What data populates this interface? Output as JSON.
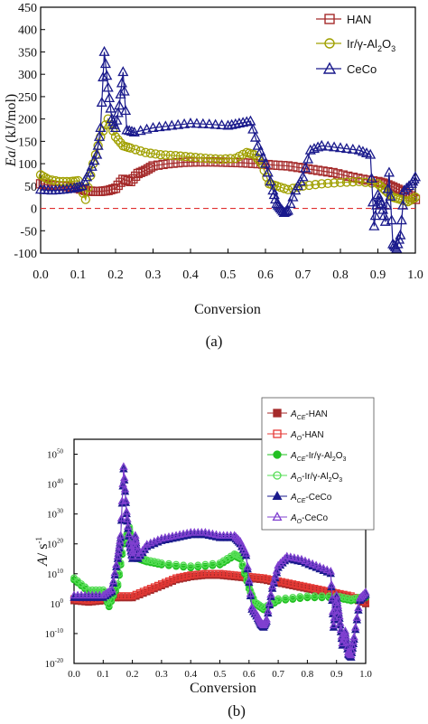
{
  "colors": {
    "han": "#a52a2a",
    "han_fill": "#e53935",
    "ir": "#a0a000",
    "ir_b": "#22c022",
    "ir_b_open": "#55dd55",
    "ceco": "#1a1a8c",
    "ceco_b": "#8040d0",
    "zero_line": "#e03030"
  },
  "chart_data": [
    {
      "type": "line",
      "caption": "(a)",
      "xlabel": "Conversion",
      "ylabel_italic": "Ea",
      "ylabel_rest": "/ (kJ/mol)",
      "xlim": [
        0.0,
        1.0
      ],
      "ylim": [
        -100,
        450
      ],
      "x_ticks": [
        "0.0",
        "0.1",
        "0.2",
        "0.3",
        "0.4",
        "0.5",
        "0.6",
        "0.7",
        "0.8",
        "0.9",
        "1.0"
      ],
      "y_ticks": [
        "450",
        "400",
        "350",
        "300",
        "250",
        "200",
        "150",
        "100",
        "50",
        "0",
        "-50",
        "-100"
      ],
      "legend_placement": "top-right",
      "reference_line": {
        "y": 0,
        "style": "dashed"
      },
      "series": [
        {
          "name": "HAN",
          "marker": "square-open",
          "x": [
            0.0,
            0.02,
            0.05,
            0.08,
            0.1,
            0.12,
            0.14,
            0.16,
            0.18,
            0.2,
            0.22,
            0.24,
            0.26,
            0.28,
            0.3,
            0.34,
            0.38,
            0.42,
            0.46,
            0.5,
            0.54,
            0.58,
            0.62,
            0.66,
            0.7,
            0.74,
            0.78,
            0.82,
            0.86,
            0.9,
            0.92,
            0.94,
            0.96,
            0.98,
            1.0
          ],
          "y": [
            55,
            52,
            50,
            48,
            45,
            40,
            38,
            38,
            40,
            45,
            65,
            60,
            78,
            85,
            95,
            100,
            103,
            104,
            104,
            103,
            102,
            100,
            97,
            95,
            90,
            85,
            80,
            72,
            65,
            60,
            55,
            48,
            40,
            32,
            20
          ]
        },
        {
          "name_text": "Ir/γ-Al",
          "name_sub1": "2",
          "name_mid": "O",
          "name_sub2": "3",
          "marker": "circle-open",
          "x": [
            0.0,
            0.02,
            0.05,
            0.08,
            0.1,
            0.12,
            0.14,
            0.16,
            0.18,
            0.2,
            0.22,
            0.24,
            0.28,
            0.32,
            0.36,
            0.4,
            0.44,
            0.48,
            0.52,
            0.55,
            0.57,
            0.59,
            0.61,
            0.63,
            0.66,
            0.7,
            0.75,
            0.8,
            0.85,
            0.9,
            0.92,
            0.94,
            0.96,
            0.98,
            1.0
          ],
          "y": [
            75,
            65,
            60,
            60,
            62,
            20,
            100,
            160,
            200,
            160,
            140,
            135,
            125,
            120,
            118,
            115,
            112,
            110,
            112,
            125,
            120,
            100,
            55,
            50,
            42,
            50,
            55,
            58,
            60,
            55,
            40,
            25,
            20,
            15,
            25
          ]
        },
        {
          "name": "CeCo",
          "marker": "triangle-open",
          "x": [
            0.0,
            0.03,
            0.06,
            0.09,
            0.11,
            0.13,
            0.15,
            0.16,
            0.17,
            0.18,
            0.19,
            0.2,
            0.21,
            0.22,
            0.23,
            0.25,
            0.3,
            0.35,
            0.4,
            0.45,
            0.5,
            0.53,
            0.56,
            0.58,
            0.6,
            0.62,
            0.63,
            0.64,
            0.65,
            0.66,
            0.68,
            0.7,
            0.72,
            0.75,
            0.8,
            0.85,
            0.88,
            0.89,
            0.9,
            0.91,
            0.92,
            0.93,
            0.94,
            0.95,
            0.96,
            0.97,
            0.99,
            1.0
          ],
          "y": [
            42,
            40,
            42,
            45,
            50,
            80,
            120,
            180,
            350,
            270,
            200,
            180,
            230,
            305,
            175,
            170,
            180,
            185,
            190,
            188,
            185,
            190,
            195,
            140,
            100,
            40,
            10,
            0,
            -10,
            -5,
            40,
            70,
            130,
            140,
            135,
            130,
            120,
            -40,
            30,
            10,
            -30,
            80,
            -80,
            -90,
            -60,
            40,
            55,
            70
          ]
        }
      ]
    },
    {
      "type": "line",
      "caption": "(b)",
      "xlabel": "Conversion",
      "ylabel_italic": "A",
      "ylabel_rest": "/ s",
      "ylabel_sup": "-1",
      "xlim": [
        0.0,
        1.0
      ],
      "ylim_log10": [
        -20,
        55
      ],
      "y_scale": "log",
      "x_ticks": [
        "0.0",
        "0.1",
        "0.2",
        "0.3",
        "0.4",
        "0.5",
        "0.6",
        "0.7",
        "0.8",
        "0.9",
        "1.0"
      ],
      "y_tick_base": "10",
      "y_tick_exponents": [
        "50",
        "40",
        "30",
        "20",
        "10",
        "0",
        "-10",
        "-20"
      ],
      "legend_placement": "top-right-outside",
      "legend": [
        {
          "italic": "A",
          "sub": "CE",
          "rest": "-HAN",
          "marker": "square-filled",
          "color_key": "han"
        },
        {
          "italic": "A",
          "sub": "O",
          "rest": "-HAN",
          "marker": "square-open",
          "color_key": "han_fill"
        },
        {
          "italic": "A",
          "sub": "CE",
          "rest": "-Ir/γ-Al",
          "sub2": "2",
          "rest2": "O",
          "sub3": "3",
          "marker": "circle-filled",
          "color_key": "ir_b"
        },
        {
          "italic": "A",
          "sub": "O",
          "rest": "-Ir/γ-Al",
          "sub2": "2",
          "rest2": "O",
          "sub3": "3",
          "marker": "circle-open",
          "color_key": "ir_b_open"
        },
        {
          "italic": "A",
          "sub": "CE",
          "rest": "-CeCo",
          "marker": "triangle-filled",
          "color_key": "ceco"
        },
        {
          "italic": "A",
          "sub": "O",
          "rest": "-CeCo",
          "marker": "triangle-open",
          "color_key": "ceco_b"
        }
      ],
      "series_log10": [
        {
          "key": "han",
          "x": [
            0.0,
            0.05,
            0.1,
            0.12,
            0.15,
            0.2,
            0.25,
            0.3,
            0.35,
            0.4,
            0.45,
            0.5,
            0.55,
            0.6,
            0.65,
            0.7,
            0.75,
            0.8,
            0.85,
            0.9,
            0.95,
            1.0
          ],
          "y": [
            1,
            0.5,
            1,
            2,
            2,
            2,
            4,
            6,
            8,
            9,
            9.5,
            9.5,
            9,
            8.5,
            8,
            7,
            6,
            5,
            4,
            3,
            2,
            0
          ]
        },
        {
          "key": "ir",
          "x": [
            0.0,
            0.05,
            0.1,
            0.12,
            0.15,
            0.17,
            0.19,
            0.2,
            0.22,
            0.25,
            0.3,
            0.4,
            0.5,
            0.55,
            0.57,
            0.6,
            0.62,
            0.65,
            0.7,
            0.8,
            0.9,
            0.95,
            1.0
          ],
          "y": [
            8,
            4,
            4,
            -1,
            6,
            20,
            25,
            18,
            15,
            14,
            13,
            12,
            13,
            16,
            15,
            5,
            0,
            -2,
            1,
            2,
            2,
            1,
            2
          ]
        },
        {
          "key": "ceco",
          "x": [
            0.0,
            0.05,
            0.1,
            0.13,
            0.15,
            0.16,
            0.17,
            0.18,
            0.19,
            0.2,
            0.21,
            0.22,
            0.25,
            0.3,
            0.35,
            0.4,
            0.45,
            0.5,
            0.55,
            0.57,
            0.59,
            0.61,
            0.63,
            0.64,
            0.65,
            0.66,
            0.68,
            0.7,
            0.73,
            0.78,
            0.83,
            0.88,
            0.89,
            0.9,
            0.91,
            0.92,
            0.93,
            0.94,
            0.95,
            0.96,
            0.98,
            1.0
          ],
          "y": [
            2,
            2,
            2,
            4,
            15,
            22,
            45,
            30,
            20,
            15,
            22,
            15,
            19,
            21,
            22,
            23,
            23,
            22,
            22,
            20,
            16,
            -2,
            -5,
            -7,
            -8,
            -6,
            5,
            12,
            15,
            14,
            12,
            10,
            -8,
            2,
            -5,
            -14,
            -10,
            -17,
            -18,
            -12,
            1,
            3
          ]
        }
      ]
    }
  ]
}
